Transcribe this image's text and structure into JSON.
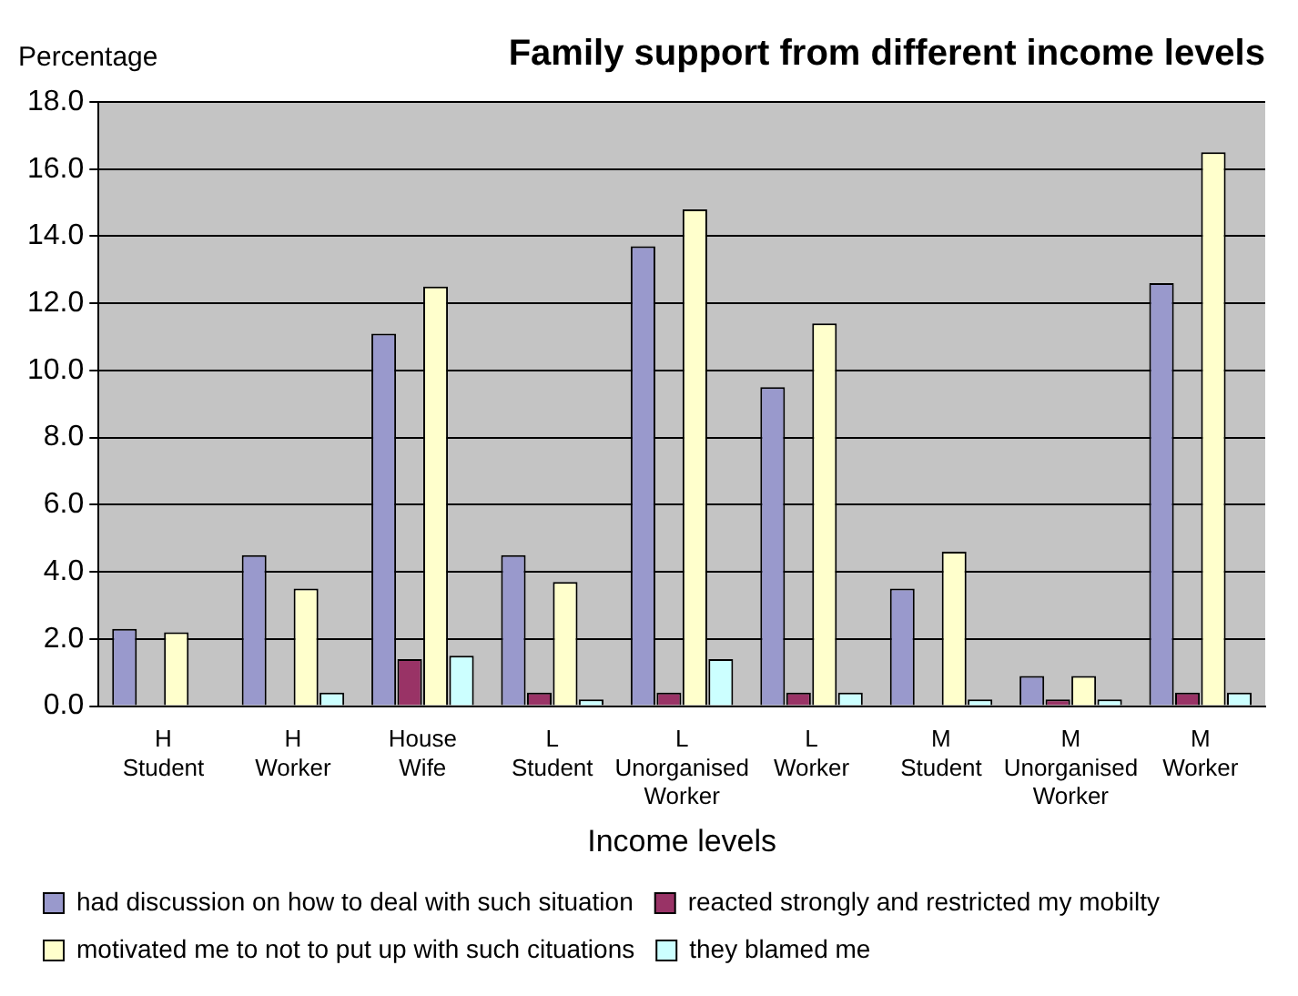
{
  "chart_data": {
    "type": "bar",
    "title": "Family support from different income levels",
    "ylabel": "Percentage",
    "xlabel": "Income levels",
    "categories": [
      "H\nStudent",
      "H\nWorker",
      "House\nWife",
      "L\nStudent",
      "L\nUnorganised\nWorker",
      "L\nWorker",
      "M\nStudent",
      "M\nUnorganised\nWorker",
      "M\nWorker"
    ],
    "series": [
      {
        "name": "had discussion on how to deal with such situation",
        "color": "#9999cc",
        "values": [
          2.3,
          4.5,
          11.1,
          4.5,
          13.7,
          9.5,
          3.5,
          0.9,
          12.6
        ]
      },
      {
        "name": "reacted strongly and restricted my mobilty",
        "color": "#993366",
        "values": [
          0,
          0,
          1.4,
          0.4,
          0.4,
          0.4,
          0,
          0.2,
          0.4
        ]
      },
      {
        "name": "motivated me to not to put up with such cituations",
        "color": "#ffffcc",
        "values": [
          2.2,
          3.5,
          12.5,
          3.7,
          14.8,
          11.4,
          4.6,
          0.9,
          16.5
        ]
      },
      {
        "name": "they blamed me",
        "color": "#ccffff",
        "values": [
          0,
          0.4,
          1.5,
          0.2,
          1.4,
          0.4,
          0.2,
          0.2,
          0.4
        ]
      }
    ],
    "ylim": [
      0,
      18
    ],
    "yticks": [
      {
        "value": 0,
        "label": "0.0"
      },
      {
        "value": 2,
        "label": "2.0"
      },
      {
        "value": 4,
        "label": "4.0"
      },
      {
        "value": 6,
        "label": "6.0"
      },
      {
        "value": 8,
        "label": "8.0"
      },
      {
        "value": 10,
        "label": "10.0"
      },
      {
        "value": 12,
        "label": "12.0"
      },
      {
        "value": 14,
        "label": "14.0"
      },
      {
        "value": 16,
        "label": "16.0"
      },
      {
        "value": 18,
        "label": "18.0"
      }
    ],
    "grid": "y",
    "legend": "bottom"
  }
}
